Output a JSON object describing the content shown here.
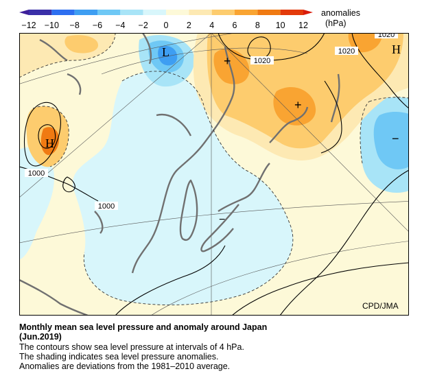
{
  "legend": {
    "title": "anomalies",
    "unit": "(hPa)",
    "ticks": [
      "−12",
      "−10",
      "−8",
      "−6",
      "−4",
      "−2",
      "0",
      "2",
      "4",
      "6",
      "8",
      "10",
      "12"
    ],
    "colors": [
      "#3a2fa8",
      "#2d6ff0",
      "#3e9ef2",
      "#6fc8f5",
      "#a8e4f7",
      "#d8f6fb",
      "#fdf9d8",
      "#fde9b3",
      "#fdcc6e",
      "#f9a432",
      "#f07a12",
      "#e33a0a"
    ]
  },
  "map": {
    "credit": "CPD/JMA",
    "contour_labels": [
      "1020",
      "1020",
      "1020",
      "1000",
      "1000"
    ],
    "high_label": "H",
    "low_label": "L",
    "high_label_2": "H",
    "positive_marks": [
      "+",
      "+"
    ],
    "negative_marks": [
      "−",
      "−"
    ]
  },
  "caption": {
    "title_line1": "Monthly mean sea level pressure and anomaly around Japan",
    "title_line2": "(Jun.2019)",
    "line1": "The contours show sea level pressure at intervals of 4 hPa.",
    "line2": "The shading indicates sea level pressure anomalies.",
    "line3": "Anomalies are deviations from the 1981–2010 average."
  }
}
